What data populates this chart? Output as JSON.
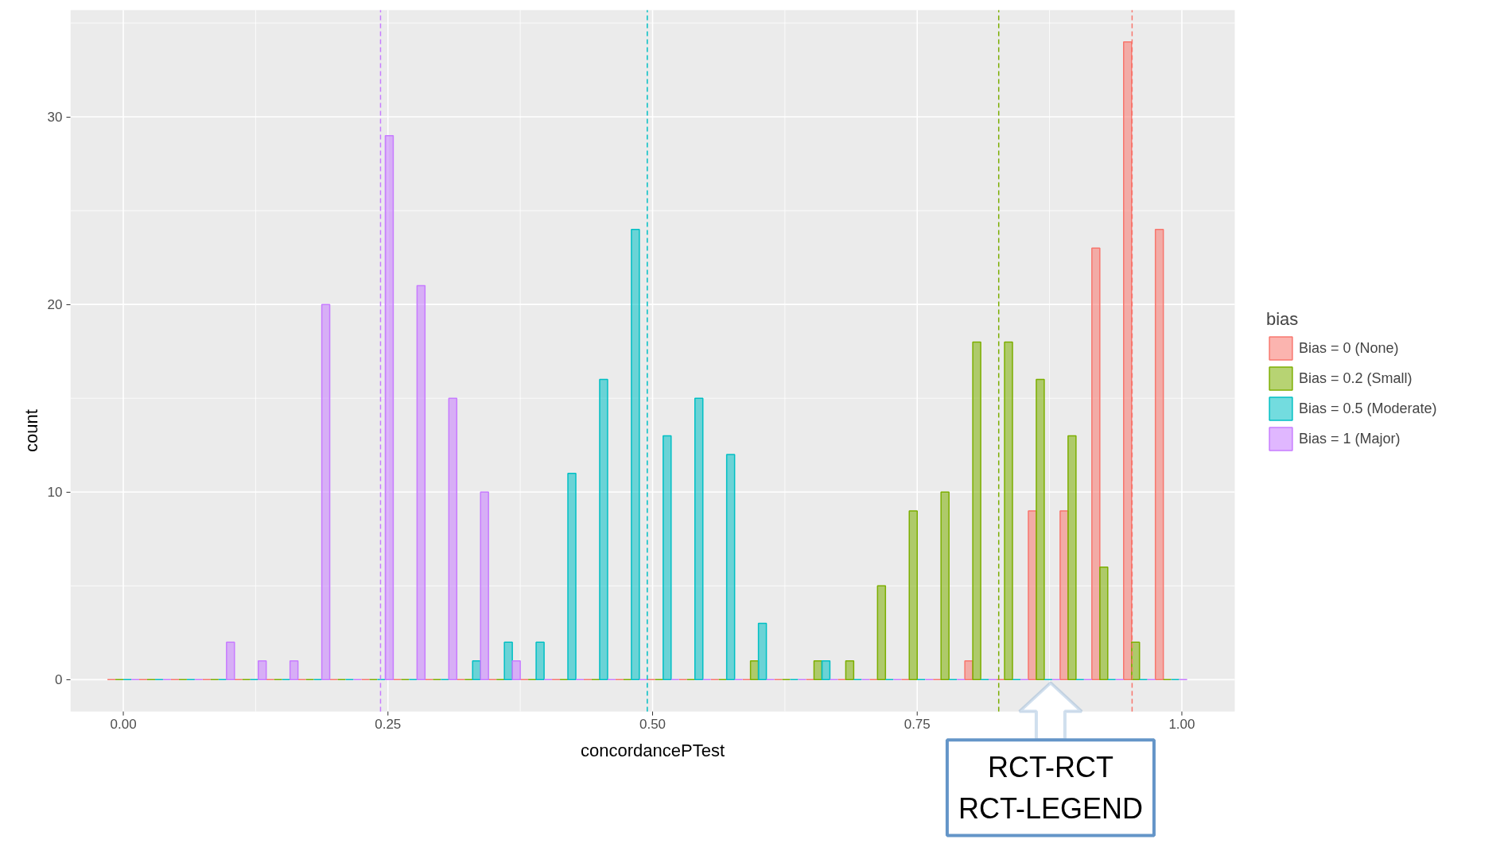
{
  "chart_data": {
    "type": "histogram",
    "xlabel": "concordancePTest",
    "ylabel": "count",
    "legend_title": "bias",
    "bins": [
      -0.015,
      0.015,
      0.045,
      0.075,
      0.105,
      0.135,
      0.165,
      0.195,
      0.225,
      0.255,
      0.285,
      0.315,
      0.345,
      0.375,
      0.405,
      0.435,
      0.465,
      0.495,
      0.525,
      0.555,
      0.585,
      0.615,
      0.645,
      0.675,
      0.705,
      0.735,
      0.765,
      0.795,
      0.825,
      0.855,
      0.885,
      0.915,
      0.945,
      0.975,
      1.005
    ],
    "series": [
      {
        "name": "Bias = 0 (None)",
        "color": "#f8766d",
        "values": [
          0,
          0,
          0,
          0,
          0,
          0,
          0,
          0,
          0,
          0,
          0,
          0,
          0,
          0,
          0,
          0,
          0,
          0,
          0,
          0,
          0,
          0,
          0,
          0,
          0,
          0,
          0,
          1,
          0,
          9,
          9,
          23,
          34,
          24
        ]
      },
      {
        "name": "Bias = 0.2 (Small)",
        "color": "#7cae00",
        "values": [
          0,
          0,
          0,
          0,
          0,
          0,
          0,
          0,
          0,
          0,
          0,
          0,
          0,
          0,
          0,
          0,
          0,
          0,
          0,
          0,
          1,
          0,
          1,
          1,
          5,
          9,
          10,
          18,
          18,
          16,
          13,
          6,
          2,
          0
        ]
      },
      {
        "name": "Bias = 0.5 (Moderate)",
        "color": "#00bfc4",
        "values": [
          0,
          0,
          0,
          0,
          0,
          0,
          0,
          0,
          0,
          0,
          0,
          1,
          2,
          2,
          11,
          16,
          24,
          13,
          15,
          12,
          3,
          0,
          1,
          0,
          0,
          0,
          0,
          0,
          0,
          0,
          0,
          0,
          0,
          0
        ]
      },
      {
        "name": "Bias = 1 (Major)",
        "color": "#c77cff",
        "values": [
          0,
          0,
          0,
          2,
          1,
          1,
          20,
          0,
          29,
          21,
          15,
          10,
          1,
          0,
          0,
          0,
          0,
          0,
          0,
          0,
          0,
          0,
          0,
          0,
          0,
          0,
          0,
          0,
          0,
          0,
          0,
          0,
          0,
          0
        ]
      }
    ],
    "ref_lines": [
      {
        "axis": "x",
        "value": 0.953,
        "color": "#f8766d",
        "line_style": "dashed"
      },
      {
        "axis": "x",
        "value": 0.827,
        "color": "#7cae00",
        "line_style": "dashed"
      },
      {
        "axis": "x",
        "value": 0.495,
        "color": "#00bfc4",
        "line_style": "dashed"
      },
      {
        "axis": "x",
        "value": 0.243,
        "color": "#c77cff",
        "line_style": "dashed"
      }
    ],
    "annotations": [
      {
        "text": "RCT-RCT\nRCT-LEGEND",
        "x": 0.876,
        "y": 0
      }
    ],
    "xlim": [
      -0.05,
      1.05
    ],
    "ylim": [
      -1.7,
      35.7
    ],
    "xticks": [
      {
        "value": 0,
        "label": "0.00"
      },
      {
        "value": 0.25,
        "label": "0.25"
      },
      {
        "value": 0.5,
        "label": "0.50"
      },
      {
        "value": 0.75,
        "label": "0.75"
      },
      {
        "value": 1,
        "label": "1.00"
      }
    ],
    "yticks": [
      0,
      10,
      20,
      30
    ],
    "grid": true,
    "legend": "right"
  }
}
